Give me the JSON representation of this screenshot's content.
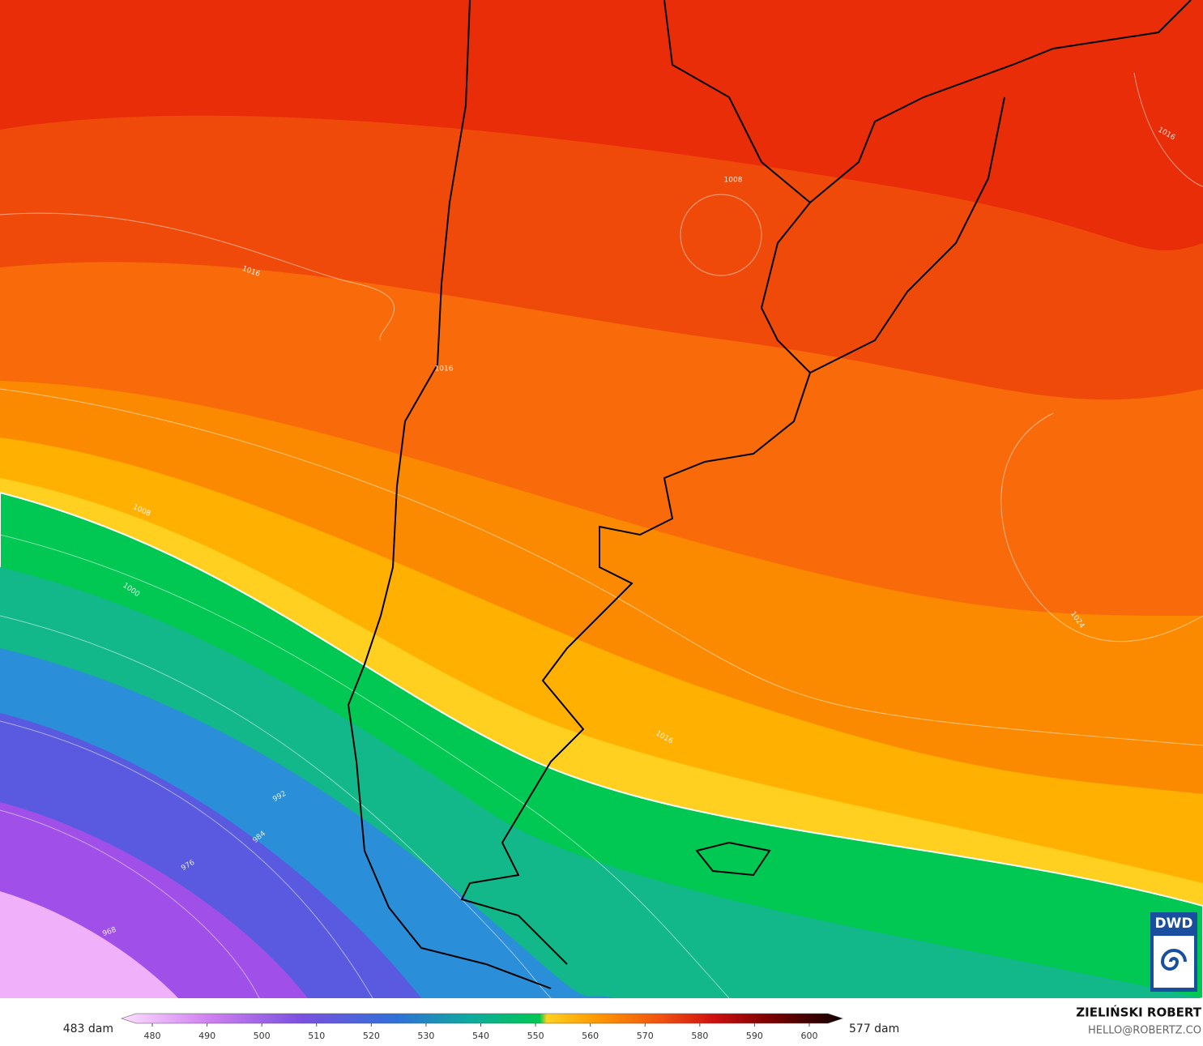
{
  "map": {
    "contour_labels": [
      "1016",
      "1016",
      "1008",
      "1016",
      "1008",
      "1000",
      "992",
      "984",
      "976",
      "968",
      "1024",
      "1016"
    ]
  },
  "logo": "DWD",
  "colorbar": {
    "min_label": "483 dam",
    "max_label": "577 dam",
    "ticks": [
      480,
      490,
      500,
      510,
      520,
      530,
      540,
      550,
      560,
      570,
      580,
      590,
      600
    ]
  },
  "credit": {
    "name": "ZIELIŃSKI ROBERT",
    "email": "HELLO@ROBERTZ.CO"
  }
}
